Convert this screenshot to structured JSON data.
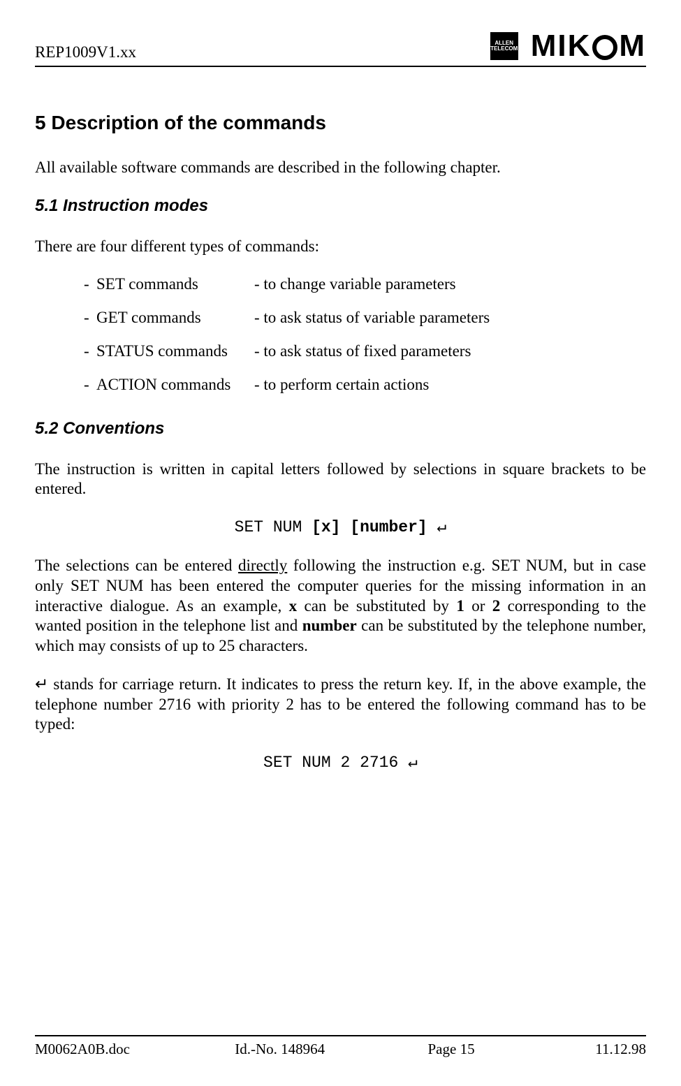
{
  "header": {
    "doc_ref": "REP1009V1.xx",
    "logo_allen_line1": "ALLEN",
    "logo_allen_line2": "TELECOM",
    "logo_mikom_left": "MIK",
    "logo_mikom_right": "M"
  },
  "section": {
    "heading": "5  Description of the commands",
    "intro": "All available software commands are described in the following chapter."
  },
  "sub1": {
    "heading": "5.1  Instruction modes",
    "intro": "There are four different types of commands:",
    "rows": [
      {
        "name": "SET  commands",
        "desc": "- to change variable parameters"
      },
      {
        "name": "GET  commands",
        "desc": "- to ask status of variable parameters"
      },
      {
        "name": "STATUS commands",
        "desc": "- to ask status of fixed parameters"
      },
      {
        "name": "ACTION commands",
        "desc": "- to perform certain actions"
      }
    ]
  },
  "sub2": {
    "heading": "5.2  Conventions",
    "p1": "The instruction is written in capital letters followed by selections in square brackets to be entered.",
    "code1_a": "SET NUM ",
    "code1_b": "[x] [number]",
    "code1_c": " ↵",
    "p2_a": "The selections can be entered ",
    "p2_underlined": "directly",
    "p2_b": " following the instruction e.g. SET NUM, but in case only SET NUM has been entered the computer queries for the missing information in an interactive dialogue. As an example, ",
    "p2_x": "x",
    "p2_c": " can be substituted by ",
    "p2_1": "1",
    "p2_d": " or ",
    "p2_2": "2",
    "p2_e": " corresponding to the wanted position in the telephone list and ",
    "p2_num": "number",
    "p2_f": " can be substituted by the telephone number, which may consists of up to 25 characters.",
    "p3": "↵  stands for carriage return. It indicates to press the return key. If, in the above example, the telephone number 2716 with priority 2 has to be entered the following command has to be typed:",
    "code2": "SET NUM 2 2716 ↵"
  },
  "footer": {
    "f1": "M0062A0B.doc",
    "f2": "Id.-No. 148964",
    "f3": "Page 15",
    "f4": "11.12.98"
  }
}
